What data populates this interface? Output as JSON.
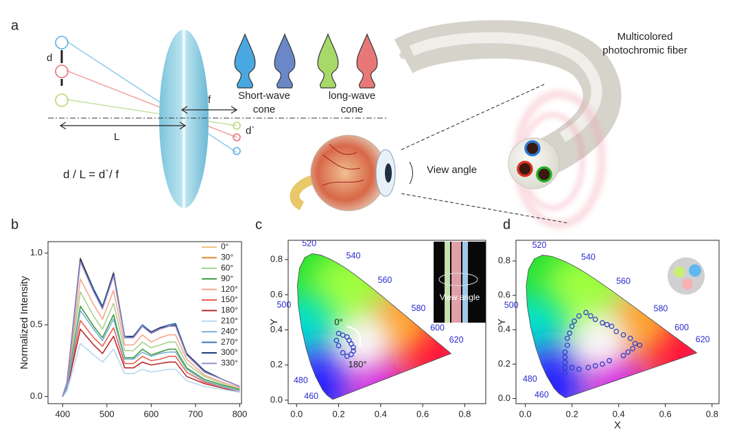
{
  "panel_labels": [
    "a",
    "b",
    "c",
    "d"
  ],
  "diagram": {
    "d": "d",
    "f": "f",
    "L": "L",
    "d_prime": "d`",
    "formula": "d / L = d`/ f",
    "short_cone": [
      "Short-wave",
      "cone"
    ],
    "long_cone": [
      "long-wave",
      "cone"
    ],
    "fiber_label": [
      "Multicolored",
      "photochromic fiber"
    ],
    "view_angle": "View angle"
  },
  "chart_data": [
    {
      "type": "line",
      "ylabel": "Normalized Intensity",
      "x": [
        400,
        410,
        440,
        470,
        490,
        515,
        540,
        560,
        580,
        600,
        620,
        640,
        655,
        680,
        720,
        760,
        800
      ],
      "xlim": [
        367,
        804
      ],
      "xticks": [
        400,
        500,
        600,
        700,
        800
      ],
      "ylim": [
        -0.05,
        1.08
      ],
      "yticks": [
        {
          "value": 0,
          "label": "0.0"
        },
        {
          "value": 0.5,
          "label": "0.5"
        },
        {
          "value": 1,
          "label": "1.0"
        }
      ],
      "series": [
        {
          "name": "0°",
          "color": "#f3c07a",
          "values": [
            0,
            0.1,
            0.97,
            0.75,
            0.63,
            0.87,
            0.42,
            0.42,
            0.5,
            0.45,
            0.48,
            0.5,
            0.5,
            0.3,
            0.18,
            0.12,
            0.07
          ]
        },
        {
          "name": "30°",
          "color": "#e8842a",
          "values": [
            0,
            0.1,
            0.95,
            0.74,
            0.62,
            0.85,
            0.41,
            0.41,
            0.49,
            0.44,
            0.47,
            0.49,
            0.49,
            0.29,
            0.18,
            0.12,
            0.07
          ]
        },
        {
          "name": "60°",
          "color": "#a8d08d",
          "values": [
            0,
            0.08,
            0.73,
            0.56,
            0.47,
            0.65,
            0.32,
            0.32,
            0.38,
            0.34,
            0.36,
            0.38,
            0.38,
            0.23,
            0.14,
            0.09,
            0.05
          ]
        },
        {
          "name": "90°",
          "color": "#3a9a3a",
          "values": [
            0,
            0.07,
            0.63,
            0.49,
            0.41,
            0.57,
            0.27,
            0.27,
            0.33,
            0.29,
            0.31,
            0.33,
            0.33,
            0.2,
            0.12,
            0.08,
            0.05
          ]
        },
        {
          "name": "120°",
          "color": "#f4a58a",
          "values": [
            0,
            0.09,
            0.82,
            0.64,
            0.54,
            0.74,
            0.36,
            0.36,
            0.43,
            0.38,
            0.41,
            0.43,
            0.43,
            0.26,
            0.15,
            0.1,
            0.06
          ]
        },
        {
          "name": "150°",
          "color": "#e8604a",
          "values": [
            0,
            0.06,
            0.53,
            0.41,
            0.35,
            0.48,
            0.23,
            0.23,
            0.28,
            0.25,
            0.26,
            0.28,
            0.28,
            0.17,
            0.1,
            0.07,
            0.04
          ]
        },
        {
          "name": "180°",
          "color": "#b8282a",
          "values": [
            0,
            0.05,
            0.47,
            0.36,
            0.3,
            0.42,
            0.2,
            0.2,
            0.24,
            0.22,
            0.23,
            0.24,
            0.24,
            0.14,
            0.09,
            0.06,
            0.03
          ]
        },
        {
          "name": "210°",
          "color": "#b8d8f0",
          "values": [
            0,
            0.04,
            0.37,
            0.29,
            0.24,
            0.33,
            0.16,
            0.16,
            0.19,
            0.17,
            0.18,
            0.19,
            0.19,
            0.11,
            0.07,
            0.05,
            0.03
          ]
        },
        {
          "name": "240°",
          "color": "#7ab0d8",
          "values": [
            0,
            0.06,
            0.6,
            0.47,
            0.39,
            0.54,
            0.26,
            0.26,
            0.31,
            0.28,
            0.3,
            0.31,
            0.31,
            0.19,
            0.11,
            0.07,
            0.04
          ]
        },
        {
          "name": "270°",
          "color": "#3a78b8",
          "values": [
            0,
            0.1,
            0.96,
            0.75,
            0.63,
            0.86,
            0.42,
            0.42,
            0.5,
            0.45,
            0.48,
            0.5,
            0.51,
            0.3,
            0.18,
            0.12,
            0.07
          ]
        },
        {
          "name": "300°",
          "color": "#1a3a78",
          "values": [
            0,
            0.1,
            0.96,
            0.74,
            0.62,
            0.86,
            0.41,
            0.42,
            0.49,
            0.45,
            0.48,
            0.49,
            0.5,
            0.3,
            0.18,
            0.12,
            0.07
          ]
        },
        {
          "name": "330°",
          "color": "#9a8ac8",
          "values": [
            0,
            0.1,
            0.94,
            0.73,
            0.61,
            0.84,
            0.41,
            0.41,
            0.49,
            0.44,
            0.47,
            0.49,
            0.49,
            0.29,
            0.17,
            0.12,
            0.07
          ]
        }
      ]
    },
    {
      "type": "scatter",
      "ylabel": "Y",
      "color": "#2b3fc8",
      "xlim": [
        -0.04,
        0.9
      ],
      "ylim": [
        -0.02,
        0.91
      ],
      "xticks": [
        {
          "value": 0,
          "label": "0.0"
        },
        {
          "value": 0.2,
          "label": "0.2"
        },
        {
          "value": 0.4,
          "label": "0.4"
        },
        {
          "value": 0.6,
          "label": "0.6"
        },
        {
          "value": 0.8,
          "label": "0.8"
        }
      ],
      "yticks": [
        {
          "value": 0,
          "label": "0.0"
        },
        {
          "value": 0.2,
          "label": "0.2"
        },
        {
          "value": 0.4,
          "label": "0.4"
        },
        {
          "value": 0.6,
          "label": "0.6"
        },
        {
          "value": 0.8,
          "label": "0.8"
        }
      ],
      "x": [
        0.2,
        0.22,
        0.24,
        0.25,
        0.26,
        0.27,
        0.27,
        0.26,
        0.24,
        0.22,
        0.2,
        0.19
      ],
      "y": [
        0.38,
        0.37,
        0.36,
        0.34,
        0.32,
        0.3,
        0.28,
        0.26,
        0.25,
        0.27,
        0.31,
        0.34
      ],
      "wavelength_labels": [
        "520",
        "540",
        "560",
        "580",
        "600",
        "620",
        "500",
        "480",
        "460"
      ],
      "annotations": [
        "0°",
        "180°"
      ],
      "inset_label": "View angle"
    },
    {
      "type": "scatter",
      "xlabel": "X",
      "ylabel": "Y",
      "color": "#2b3fc8",
      "xlim": [
        -0.04,
        0.83
      ],
      "ylim": [
        -0.03,
        0.92
      ],
      "xticks": [
        {
          "value": 0,
          "label": "0.0"
        },
        {
          "value": 0.2,
          "label": "0.2"
        },
        {
          "value": 0.4,
          "label": "0.4"
        },
        {
          "value": 0.6,
          "label": "0.6"
        },
        {
          "value": 0.8,
          "label": "0.8"
        }
      ],
      "yticks": [
        {
          "value": 0,
          "label": "0.0"
        },
        {
          "value": 0.2,
          "label": "0.2"
        },
        {
          "value": 0.4,
          "label": "0.4"
        },
        {
          "value": 0.6,
          "label": "0.6"
        },
        {
          "value": 0.8,
          "label": "0.8"
        }
      ],
      "x": [
        0.17,
        0.17,
        0.17,
        0.17,
        0.17,
        0.18,
        0.18,
        0.19,
        0.2,
        0.21,
        0.23,
        0.26,
        0.28,
        0.3,
        0.33,
        0.35,
        0.37,
        0.39,
        0.42,
        0.45,
        0.47,
        0.49,
        0.46,
        0.44,
        0.42,
        0.36,
        0.33,
        0.3,
        0.27,
        0.23,
        0.2
      ],
      "y": [
        0.15,
        0.18,
        0.21,
        0.24,
        0.27,
        0.31,
        0.35,
        0.38,
        0.42,
        0.45,
        0.48,
        0.5,
        0.48,
        0.46,
        0.44,
        0.43,
        0.42,
        0.39,
        0.37,
        0.35,
        0.32,
        0.31,
        0.29,
        0.27,
        0.25,
        0.22,
        0.2,
        0.19,
        0.18,
        0.17,
        0.18
      ],
      "wavelength_labels": [
        "520",
        "540",
        "560",
        "580",
        "600",
        "620",
        "500",
        "480",
        "460"
      ]
    }
  ]
}
